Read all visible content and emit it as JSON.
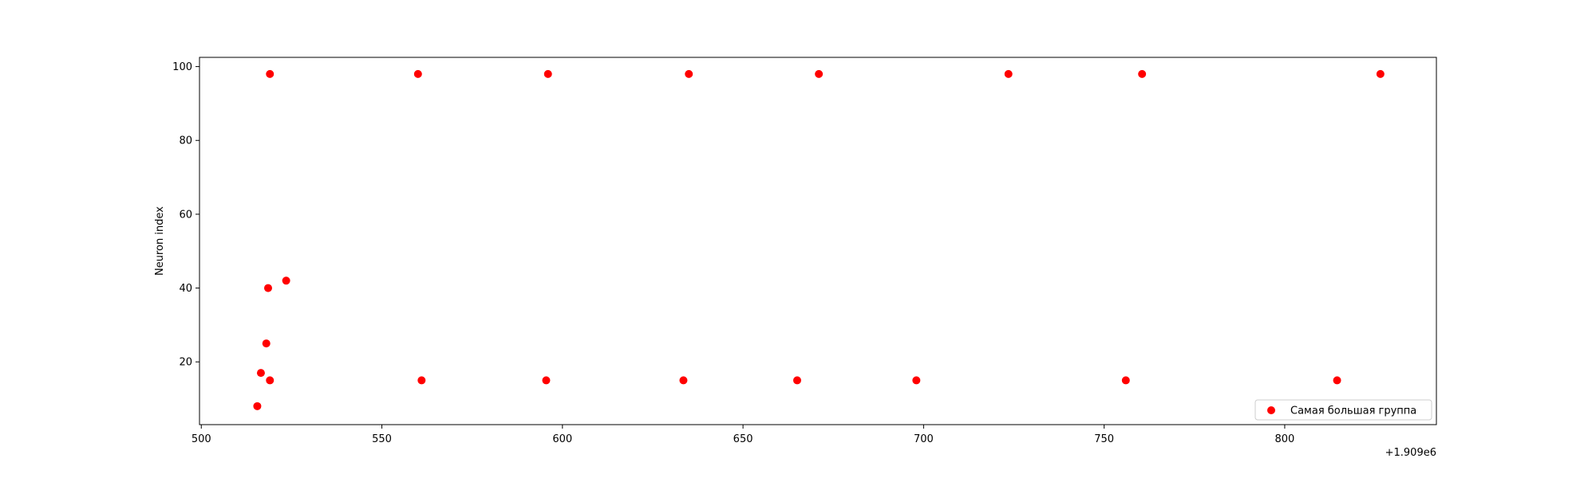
{
  "chart_data": {
    "type": "scatter",
    "title": "",
    "xlabel": "",
    "ylabel": "Neuron index",
    "x_offset_label": "+1.909e6",
    "xlim": [
      499.5,
      842
    ],
    "ylim": [
      3,
      102.5
    ],
    "x_ticks": [
      500,
      550,
      600,
      650,
      700,
      750,
      800
    ],
    "x_tick_labels": [
      "500",
      "550",
      "600",
      "650",
      "700",
      "750",
      "800"
    ],
    "y_ticks": [
      20,
      40,
      60,
      80,
      100
    ],
    "y_tick_labels": [
      "20",
      "40",
      "60",
      "80",
      "100"
    ],
    "grid": false,
    "legend_position": "lower right",
    "series": [
      {
        "name": "Самая большая группа",
        "color": "#ff0000",
        "points": [
          {
            "x": 519,
            "y": 98
          },
          {
            "x": 560,
            "y": 98
          },
          {
            "x": 596,
            "y": 98
          },
          {
            "x": 635,
            "y": 98
          },
          {
            "x": 671,
            "y": 98
          },
          {
            "x": 723.5,
            "y": 98
          },
          {
            "x": 760.5,
            "y": 98
          },
          {
            "x": 826.5,
            "y": 98
          },
          {
            "x": 523.5,
            "y": 42
          },
          {
            "x": 518.5,
            "y": 40
          },
          {
            "x": 518,
            "y": 25
          },
          {
            "x": 516.5,
            "y": 17
          },
          {
            "x": 519,
            "y": 15
          },
          {
            "x": 515.5,
            "y": 8
          },
          {
            "x": 561,
            "y": 15
          },
          {
            "x": 595.5,
            "y": 15
          },
          {
            "x": 633.5,
            "y": 15
          },
          {
            "x": 665,
            "y": 15
          },
          {
            "x": 698,
            "y": 15
          },
          {
            "x": 756,
            "y": 15
          },
          {
            "x": 814.5,
            "y": 15
          }
        ]
      }
    ]
  }
}
